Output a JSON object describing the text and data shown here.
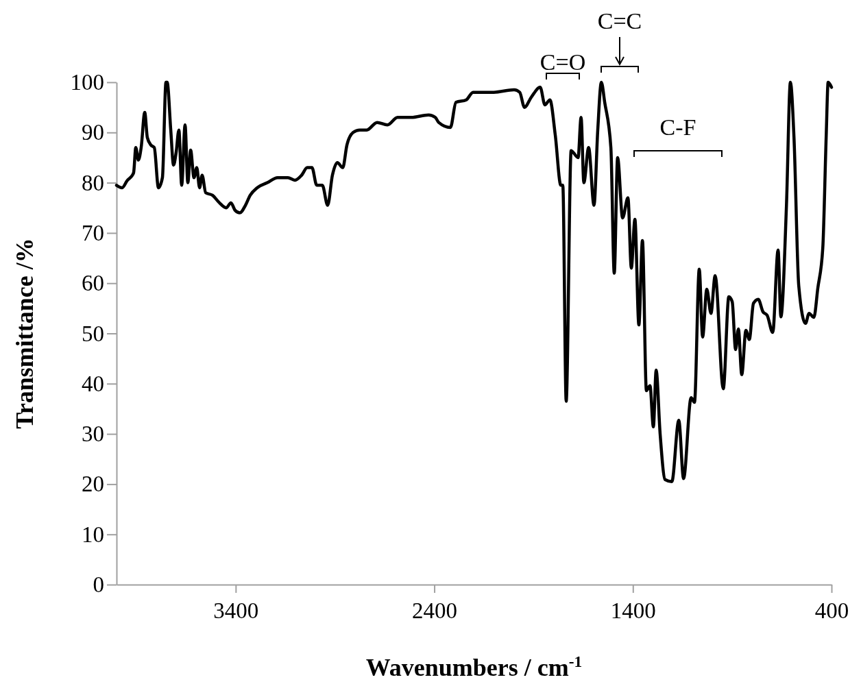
{
  "chart_data": {
    "type": "line",
    "xlabel": "Wavenumbers  / cm$^{-1}$",
    "ylabel": "Transmittance /%",
    "xlim": [
      4000,
      400
    ],
    "xticks": [
      3400,
      2400,
      1400,
      400
    ],
    "ylim": [
      0,
      100
    ],
    "yticks": [
      0,
      10,
      20,
      30,
      40,
      50,
      60,
      70,
      80,
      90,
      100
    ],
    "grid": false,
    "marker": "none",
    "line_style": "solid",
    "series": [
      {
        "color": "#000000",
        "x": [
          4000,
          3972,
          3945,
          3931,
          3914,
          3903,
          3890,
          3876,
          3858,
          3845,
          3827,
          3810,
          3789,
          3769,
          3751,
          3745,
          3727,
          3713,
          3700,
          3686,
          3672,
          3655,
          3641,
          3627,
          3610,
          3596,
          3582,
          3569,
          3551,
          3517,
          3482,
          3448,
          3424,
          3403,
          3379,
          3351,
          3327,
          3292,
          3241,
          3189,
          3137,
          3102,
          3068,
          3040,
          3016,
          2992,
          2964,
          2937,
          2913,
          2888,
          2861,
          2840,
          2809,
          2775,
          2740,
          2688,
          2636,
          2585,
          2516,
          2429,
          2395,
          2378,
          2319,
          2291,
          2239,
          2205,
          2101,
          1998,
          1970,
          1946,
          1912,
          1867,
          1843,
          1818,
          1791,
          1763,
          1753,
          1736,
          1711,
          1700,
          1676,
          1661,
          1647,
          1623,
          1596,
          1577,
          1559,
          1542,
          1511,
          1494,
          1477,
          1452,
          1425,
          1408,
          1390,
          1370,
          1352,
          1332,
          1314,
          1297,
          1283,
          1263,
          1238,
          1204,
          1169,
          1145,
          1107,
          1090,
          1066,
          1049,
          1028,
          1007,
          986,
          945,
          917,
          900,
          883,
          869,
          852,
          831,
          814,
          793,
          769,
          745,
          724,
          696,
          669,
          655,
          627,
          607,
          589,
          565,
          531,
          513,
          489,
          469,
          444,
          427,
          417,
          400
        ],
        "values": [
          79.5,
          79,
          80.5,
          81,
          82,
          87,
          84.5,
          87,
          94,
          89,
          87.5,
          87,
          79,
          81,
          100,
          100,
          90.5,
          83.5,
          86,
          90.5,
          79.5,
          91.5,
          80,
          86.5,
          81,
          83,
          79,
          81.5,
          78,
          77.5,
          76,
          75,
          76,
          74.5,
          74,
          75.5,
          77.5,
          79,
          80,
          81,
          81,
          80.5,
          81.5,
          83,
          83,
          79.5,
          79.5,
          75.5,
          81.5,
          84,
          83,
          87.5,
          90,
          90.5,
          90.5,
          92,
          91.5,
          93,
          93,
          93.5,
          93,
          92,
          91,
          96,
          96.5,
          98,
          98,
          98.5,
          98,
          95,
          97,
          99,
          95.5,
          96.5,
          89.5,
          79.5,
          79.5,
          36.5,
          86.4,
          86,
          85,
          93,
          80,
          87,
          75.5,
          90.5,
          100,
          96,
          87,
          62,
          85,
          73,
          77,
          63,
          72.7,
          51.7,
          68.5,
          38.6,
          39.6,
          31.4,
          42.7,
          30,
          20.9,
          20.5,
          32.7,
          21.1,
          37.2,
          36.3,
          62.8,
          49.3,
          58.8,
          54,
          61.5,
          39,
          57.3,
          56.3,
          46.8,
          50.9,
          41.8,
          50.6,
          48.8,
          56,
          56.8,
          54.3,
          53.6,
          50.2,
          66.6,
          53.3,
          75.4,
          100,
          89,
          59.5,
          52,
          54,
          53.2,
          59,
          67,
          89,
          100,
          99
        ]
      }
    ],
    "annotations": [
      "C=O",
      "C=C",
      "C-F"
    ]
  }
}
